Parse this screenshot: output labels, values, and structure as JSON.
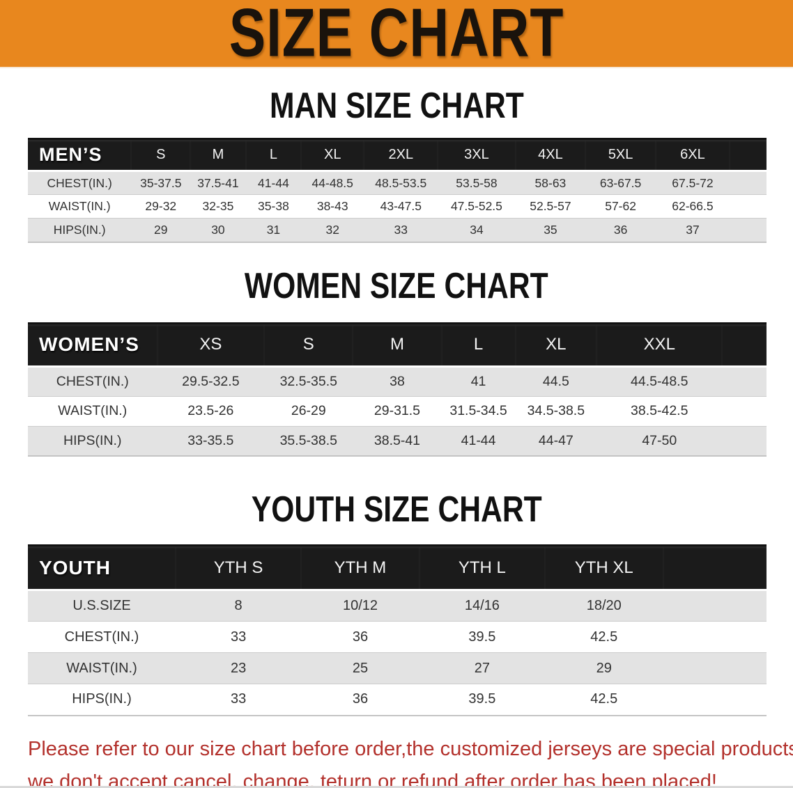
{
  "banner": {
    "title": "SIZE CHART",
    "background_color": "#E8871E",
    "text_color": "#1A130C"
  },
  "sections": [
    {
      "heading": "MAN SIZE CHART",
      "table": {
        "title": "MEN’S",
        "columns": [
          "S",
          "M",
          "L",
          "XL",
          "2XL",
          "3XL",
          "4XL",
          "5XL",
          "6XL"
        ],
        "rows": [
          {
            "label": "CHEST(IN.)",
            "values": [
              "35-37.5",
              "37.5-41",
              "41-44",
              "44-48.5",
              "48.5-53.5",
              "53.5-58",
              "58-63",
              "63-67.5",
              "67.5-72"
            ]
          },
          {
            "label": "WAIST(IN.)",
            "values": [
              "29-32",
              "32-35",
              "35-38",
              "38-43",
              "43-47.5",
              "47.5-52.5",
              "52.5-57",
              "57-62",
              "62-66.5"
            ]
          },
          {
            "label": "HIPS(IN.)",
            "values": [
              "29",
              "30",
              "31",
              "32",
              "33",
              "34",
              "35",
              "36",
              "37"
            ]
          }
        ]
      }
    },
    {
      "heading": "WOMEN SIZE CHART",
      "table": {
        "title": "WOMEN’S",
        "columns": [
          "XS",
          "S",
          "M",
          "L",
          "XL",
          "XXL"
        ],
        "rows": [
          {
            "label": "CHEST(IN.)",
            "values": [
              "29.5-32.5",
              "32.5-35.5",
              "38",
              "41",
              "44.5",
              "44.5-48.5"
            ]
          },
          {
            "label": "WAIST(IN.)",
            "values": [
              "23.5-26",
              "26-29",
              "29-31.5",
              "31.5-34.5",
              "34.5-38.5",
              "38.5-42.5"
            ]
          },
          {
            "label": "HIPS(IN.)",
            "values": [
              "33-35.5",
              "35.5-38.5",
              "38.5-41",
              "41-44",
              "44-47",
              "47-50"
            ]
          }
        ]
      }
    },
    {
      "heading": "YOUTH SIZE CHART",
      "table": {
        "title": "YOUTH",
        "columns": [
          "YTH S",
          "YTH M",
          "YTH L",
          "YTH XL"
        ],
        "rows": [
          {
            "label": "U.S.SIZE",
            "values": [
              "8",
              "10/12",
              "14/16",
              "18/20"
            ]
          },
          {
            "label": "CHEST(IN.)",
            "values": [
              "33",
              "36",
              "39.5",
              "42.5"
            ]
          },
          {
            "label": "WAIST(IN.)",
            "values": [
              "23",
              "25",
              "27",
              "29"
            ]
          },
          {
            "label": "HIPS(IN.)",
            "values": [
              "33",
              "36",
              "39.5",
              "42.5"
            ]
          }
        ]
      }
    }
  ],
  "footer": {
    "line1": "Please refer to our size chart before order,the customized jerseys are special products,",
    "line2": "we don't accept cancel, change, teturn or refund after order has been placed!",
    "text_color": "#B3312C"
  },
  "colors": {
    "stripe_gray": "#E3E3E3",
    "header_black": "#1B1B1B"
  }
}
